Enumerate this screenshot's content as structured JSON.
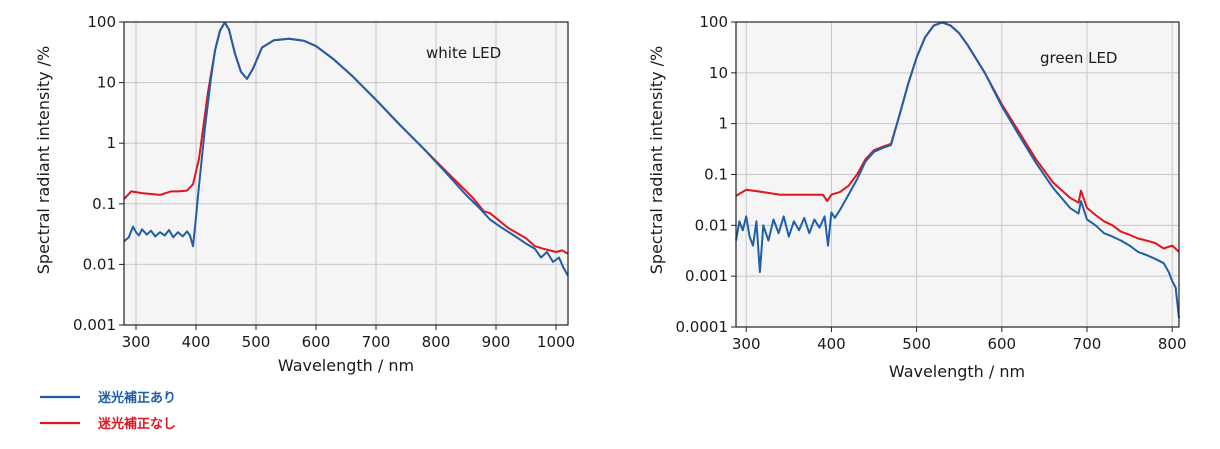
{
  "legend": [
    {
      "label": "迷光補正あり",
      "color": "#1f5fa8"
    },
    {
      "label": "迷光補正なし",
      "color": "#e0161e"
    }
  ],
  "chart_data": [
    {
      "type": "line",
      "annotation": "white LED",
      "xlabel": "Wavelength / nm",
      "ylabel": "Spectral radiant intensity /%",
      "yscale": "log",
      "xlim": [
        280,
        1020
      ],
      "ylim": [
        0.001,
        100
      ],
      "xticks": [
        300,
        400,
        500,
        600,
        700,
        800,
        900,
        1000
      ],
      "xtick_labels": [
        "300",
        "400",
        "500",
        "600",
        "700",
        "800",
        "900",
        "1000"
      ],
      "yticks": [
        0.001,
        0.01,
        0.1,
        1,
        10,
        100
      ],
      "ytick_labels": [
        "0.001",
        "0.01",
        "0.1",
        "1",
        "10",
        "100"
      ],
      "series": [
        {
          "name": "迷光補正なし",
          "color": "#e0161e",
          "x": [
            280,
            292,
            310,
            340,
            358,
            370,
            385,
            395,
            405,
            420,
            432,
            440,
            448,
            455,
            465,
            475,
            485,
            495,
            510,
            530,
            555,
            580,
            600,
            630,
            660,
            700,
            740,
            780,
            820,
            860,
            880,
            890,
            920,
            950,
            965,
            980,
            1000,
            1010,
            1020
          ],
          "y": [
            0.12,
            0.16,
            0.15,
            0.14,
            0.16,
            0.16,
            0.165,
            0.21,
            0.55,
            7,
            35,
            72,
            98,
            75,
            30,
            15,
            11.5,
            17,
            38,
            50,
            53,
            49,
            40,
            24,
            13,
            5.2,
            2.0,
            0.8,
            0.32,
            0.13,
            0.075,
            0.07,
            0.04,
            0.027,
            0.02,
            0.018,
            0.016,
            0.017,
            0.015
          ]
        },
        {
          "name": "迷光補正あり",
          "color": "#1f5fa8",
          "x": [
            280,
            288,
            295,
            300,
            305,
            310,
            318,
            325,
            332,
            340,
            348,
            355,
            362,
            370,
            378,
            385,
            390,
            395,
            400,
            405,
            415,
            425,
            432,
            440,
            448,
            455,
            465,
            475,
            485,
            495,
            510,
            530,
            555,
            580,
            600,
            630,
            660,
            700,
            740,
            780,
            820,
            850,
            870,
            890,
            910,
            930,
            950,
            965,
            975,
            985,
            995,
            1005,
            1012,
            1020
          ],
          "y": [
            0.024,
            0.028,
            0.042,
            0.034,
            0.03,
            0.038,
            0.031,
            0.036,
            0.029,
            0.034,
            0.03,
            0.037,
            0.028,
            0.034,
            0.029,
            0.035,
            0.03,
            0.02,
            0.06,
            0.2,
            1.8,
            12,
            35,
            72,
            98,
            75,
            30,
            15,
            11.5,
            17,
            38,
            50,
            53,
            49,
            40,
            24,
            13,
            5.2,
            2.0,
            0.8,
            0.3,
            0.14,
            0.09,
            0.055,
            0.04,
            0.03,
            0.022,
            0.018,
            0.013,
            0.016,
            0.011,
            0.013,
            0.009,
            0.0065
          ]
        }
      ]
    },
    {
      "type": "line",
      "annotation": "green LED",
      "xlabel": "Wavelength / nm",
      "ylabel": "Spectral radiant intensity /%",
      "yscale": "log",
      "xlim": [
        288,
        808
      ],
      "ylim": [
        0.0001,
        100
      ],
      "xticks": [
        300,
        400,
        500,
        600,
        700,
        800
      ],
      "xtick_labels": [
        "300",
        "400",
        "500",
        "600",
        "700",
        "800"
      ],
      "yticks": [
        0.0001,
        0.001,
        0.01,
        0.1,
        1,
        10,
        100
      ],
      "ytick_labels": [
        "0.0001",
        "0.001",
        "0.01",
        "0.1",
        "1",
        "10",
        "100"
      ],
      "series": [
        {
          "name": "迷光補正なし",
          "color": "#e0161e",
          "x": [
            288,
            300,
            320,
            340,
            360,
            380,
            390,
            395,
            400,
            410,
            420,
            430,
            440,
            450,
            460,
            470,
            480,
            490,
            500,
            510,
            520,
            530,
            540,
            550,
            560,
            580,
            600,
            620,
            640,
            660,
            680,
            690,
            693,
            700,
            710,
            720,
            730,
            740,
            750,
            760,
            770,
            780,
            790,
            800,
            808
          ],
          "y": [
            0.038,
            0.05,
            0.045,
            0.04,
            0.04,
            0.04,
            0.04,
            0.03,
            0.04,
            0.045,
            0.06,
            0.1,
            0.2,
            0.3,
            0.35,
            0.4,
            1.5,
            6,
            20,
            50,
            85,
            98,
            85,
            60,
            35,
            10,
            2.4,
            0.7,
            0.2,
            0.07,
            0.035,
            0.028,
            0.048,
            0.022,
            0.016,
            0.012,
            0.01,
            0.0075,
            0.0065,
            0.0055,
            0.005,
            0.0045,
            0.0035,
            0.004,
            0.003
          ]
        },
        {
          "name": "迷光補正あり",
          "color": "#1f5fa8",
          "x": [
            288,
            292,
            296,
            300,
            304,
            308,
            312,
            316,
            320,
            326,
            332,
            338,
            344,
            350,
            356,
            362,
            368,
            374,
            380,
            386,
            392,
            396,
            400,
            404,
            410,
            420,
            430,
            440,
            450,
            460,
            470,
            480,
            490,
            500,
            510,
            520,
            530,
            540,
            550,
            560,
            580,
            600,
            620,
            640,
            660,
            680,
            690,
            693,
            700,
            710,
            720,
            730,
            740,
            750,
            760,
            770,
            780,
            790,
            796,
            800,
            804,
            808
          ],
          "y": [
            0.005,
            0.012,
            0.008,
            0.015,
            0.006,
            0.004,
            0.012,
            0.0012,
            0.01,
            0.005,
            0.013,
            0.007,
            0.015,
            0.006,
            0.012,
            0.008,
            0.014,
            0.007,
            0.013,
            0.009,
            0.015,
            0.004,
            0.018,
            0.014,
            0.02,
            0.04,
            0.08,
            0.18,
            0.28,
            0.33,
            0.38,
            1.5,
            6,
            20,
            50,
            85,
            98,
            85,
            60,
            35,
            10,
            2.2,
            0.6,
            0.17,
            0.055,
            0.022,
            0.017,
            0.03,
            0.013,
            0.01,
            0.007,
            0.006,
            0.005,
            0.004,
            0.003,
            0.0026,
            0.0022,
            0.0018,
            0.0012,
            0.0008,
            0.0006,
            0.00015
          ]
        }
      ]
    }
  ]
}
